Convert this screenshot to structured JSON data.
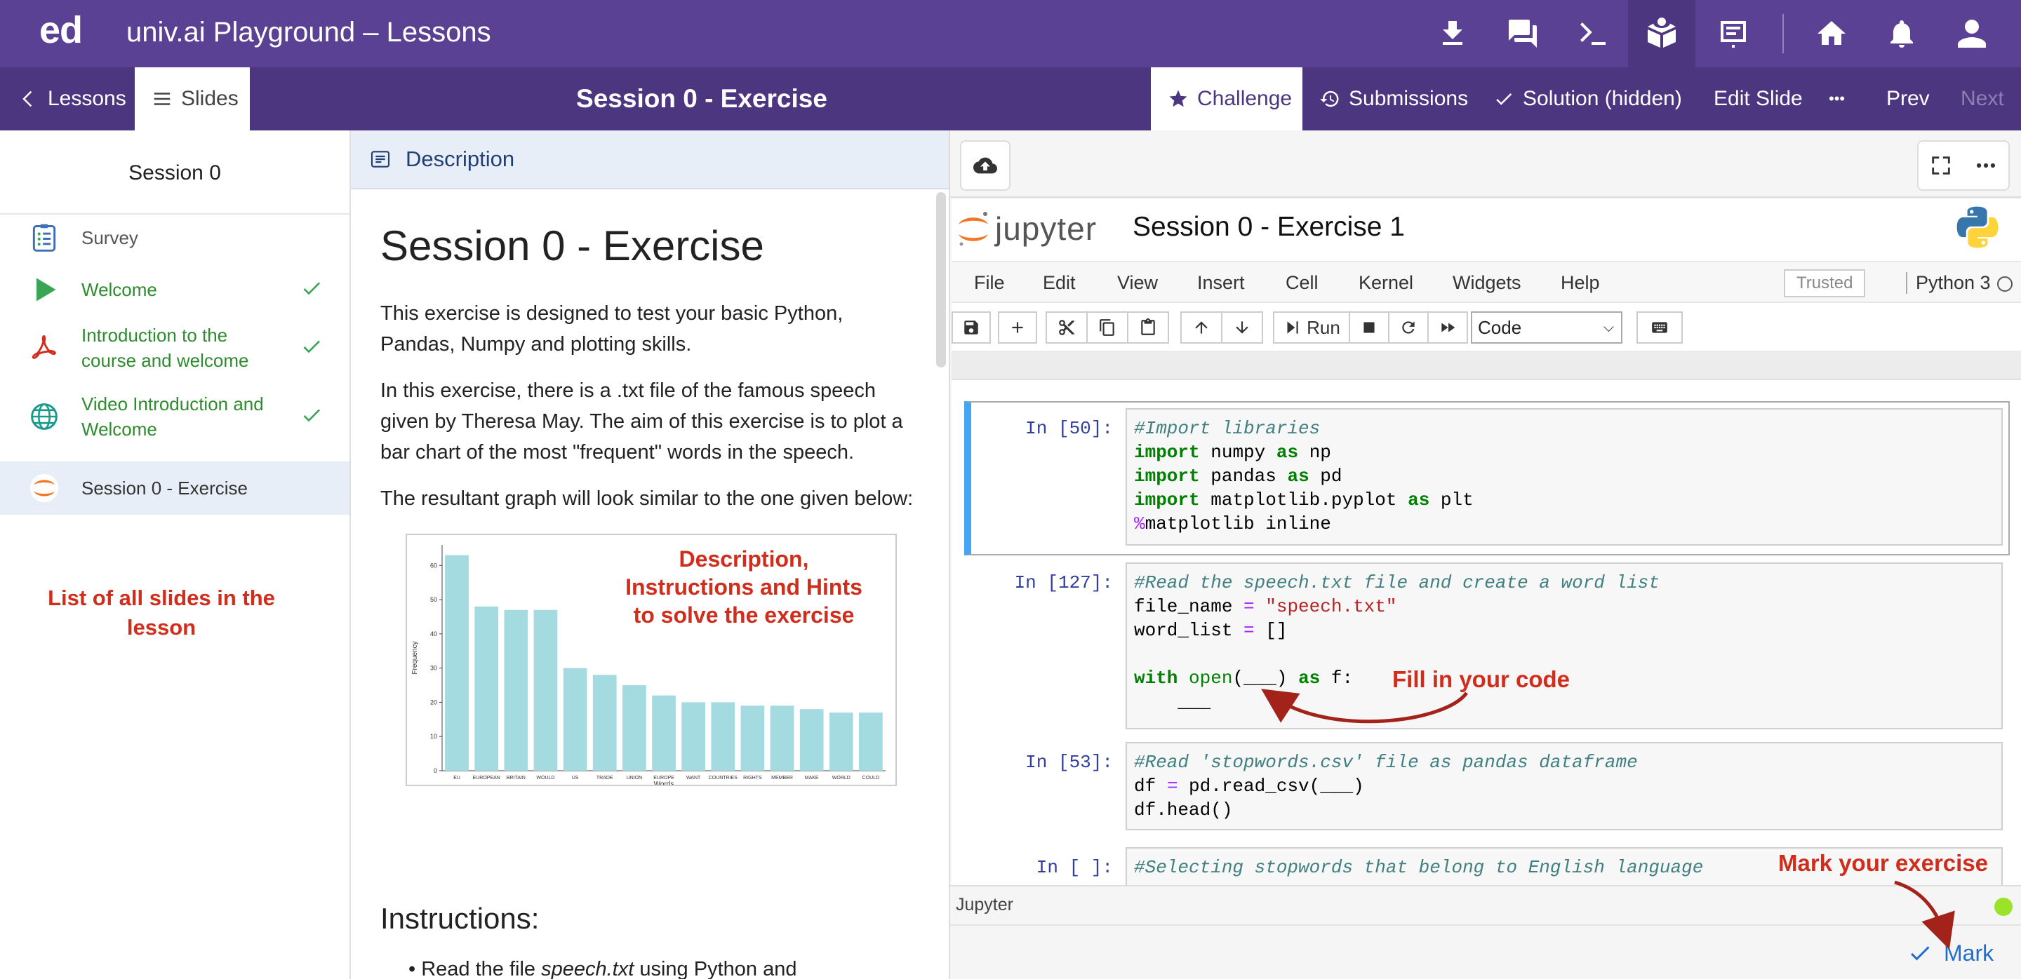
{
  "app": {
    "logo": "ed",
    "title": "univ.ai Playground – Lessons"
  },
  "topbar_icons": [
    "download-icon",
    "chat-icon",
    "terminal-icon",
    "lesson-icon",
    "slides-icon",
    "home-icon",
    "bell-icon",
    "user-icon"
  ],
  "subbar": {
    "lessons": "Lessons",
    "slides": "Slides",
    "title": "Session 0 - Exercise",
    "challenge": "Challenge",
    "submissions": "Submissions",
    "solution": "Solution (hidden)",
    "edit_slide": "Edit Slide",
    "more": "•••",
    "prev": "Prev",
    "next": "Next"
  },
  "sidebar": {
    "title": "Session 0",
    "items": [
      {
        "label": "Survey",
        "icon": "survey-icon",
        "done": false
      },
      {
        "label": "Welcome",
        "icon": "play-icon",
        "done": true
      },
      {
        "label": "Introduction to the course and welcome",
        "line1": "Introduction to the",
        "line2": "course and welcome",
        "icon": "pdf-icon",
        "done": true
      },
      {
        "label": "Video Introduction and Welcome",
        "line1": "Video Introduction and",
        "line2": "Welcome",
        "icon": "globe-icon",
        "done": true
      },
      {
        "label": "Session 0 - Exercise",
        "icon": "jupyter-icon",
        "done": false,
        "active": true
      }
    ],
    "note_line1": "List of all slides in the",
    "note_line2": "lesson"
  },
  "description": {
    "header": "Description",
    "h1": "Session 0 - Exercise",
    "p1": "This exercise is designed to test your basic Python, Pandas, Numpy and plotting skills.",
    "p2": "In this exercise, there is a .txt file of the famous speech given by Theresa May. The aim of this exercise is to plot a bar chart of the most \"frequent\" words in the speech.",
    "p3": "The resultant graph will look similar to the one given below:",
    "figure_note_line1": "Description,",
    "figure_note_line2": "Instructions and Hints",
    "figure_note_line3": "to solve the exercise",
    "instructions_heading": "Instructions:",
    "instruction_1_prefix": "Read the file ",
    "instruction_1_italic": "speech.txt",
    "instruction_1_suffix": " using Python and"
  },
  "chart_data": {
    "type": "bar",
    "categories": [
      "EU",
      "EUROPEAN",
      "BRITAIN",
      "WOULD",
      "US",
      "TRADE",
      "UNION",
      "EUROPE",
      "WANT",
      "COUNTRIES",
      "RIGHTS",
      "MEMBER",
      "MAKE",
      "WORLD",
      "COULD"
    ],
    "values": [
      63,
      48,
      47,
      47,
      30,
      28,
      25,
      22,
      20,
      20,
      19,
      19,
      18,
      17,
      17
    ],
    "xlabel": "Words",
    "ylabel": "Frequency",
    "yticks": [
      0,
      10,
      20,
      30,
      40,
      50,
      60
    ],
    "ylim": [
      0,
      66
    ],
    "bar_color": "#a3dbe0"
  },
  "notebook": {
    "brand": "jupyter",
    "name": "Session 0 - Exercise 1",
    "menu": [
      "File",
      "Edit",
      "View",
      "Insert",
      "Cell",
      "Kernel",
      "Widgets",
      "Help"
    ],
    "trusted": "Trusted",
    "kernel": "Python 3",
    "run_label": "Run",
    "cell_type": "Code",
    "cells": [
      {
        "prompt": "In [50]:"
      },
      {
        "prompt": "In [127]:"
      },
      {
        "prompt": "In [53]:"
      },
      {
        "prompt": "In [ ]:"
      }
    ],
    "code": {
      "c1_l1": "#Import libraries",
      "c1_l2_mod": "numpy",
      "c1_l2_alias": "np",
      "c1_l3_mod": "pandas",
      "c1_l3_alias": "pd",
      "c1_l4_mod": "matplotlib.pyplot",
      "c1_l4_alias": "plt",
      "c1_l5_magic": "%",
      "c1_l5_rest": "matplotlib inline",
      "c2_l1": "#Read the speech.txt file and create a word list",
      "c2_l2_var": "file_name ",
      "c2_l2_str": "\"speech.txt\"",
      "c2_l3_var": "word_list ",
      "c2_l3_val": " []",
      "c2_l5_arg": "(___) ",
      "c2_l5_end": " f:",
      "c2_l6": "    ___",
      "c3_l1": "#Read 'stopwords.csv' file as pandas dataframe",
      "c3_l2_var": "df ",
      "c3_l2_rest": " pd.read_csv(___)",
      "c3_l3": "df.head()",
      "c4_l1": "#Selecting stopwords that belong to English language"
    },
    "footer": "Jupyter",
    "fill_note": "Fill in your code",
    "mark_note": "Mark your exercise",
    "mark_label": "Mark"
  },
  "colors": {
    "topbar": "#5b4193",
    "subbar": "#4d3680",
    "done_green": "#2e8b2e",
    "annotation_red": "#d12d1c",
    "mark_blue": "#1f6fd0"
  }
}
